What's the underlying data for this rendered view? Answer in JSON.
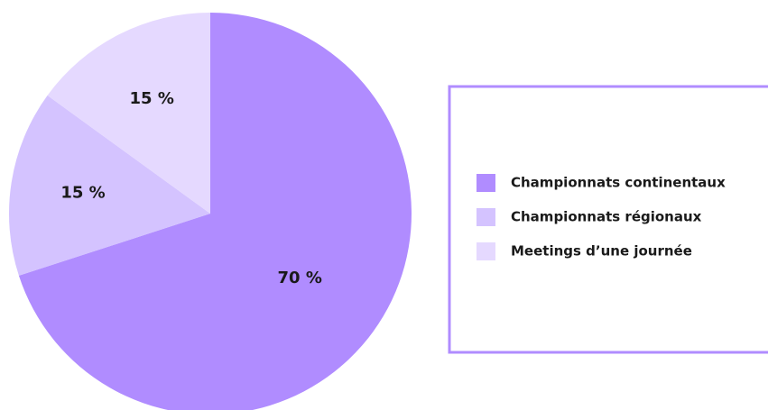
{
  "chart_data": {
    "type": "pie",
    "categories": [
      "Championnats continentaux",
      "Championnats régionaux",
      "Meetings d’une journée"
    ],
    "values": [
      70,
      15,
      15
    ],
    "value_labels": [
      "70 %",
      "15 %",
      "15 %"
    ],
    "colors": [
      "#b08cff",
      "#d4c3ff",
      "#e5d9ff"
    ],
    "legend": "right"
  }
}
